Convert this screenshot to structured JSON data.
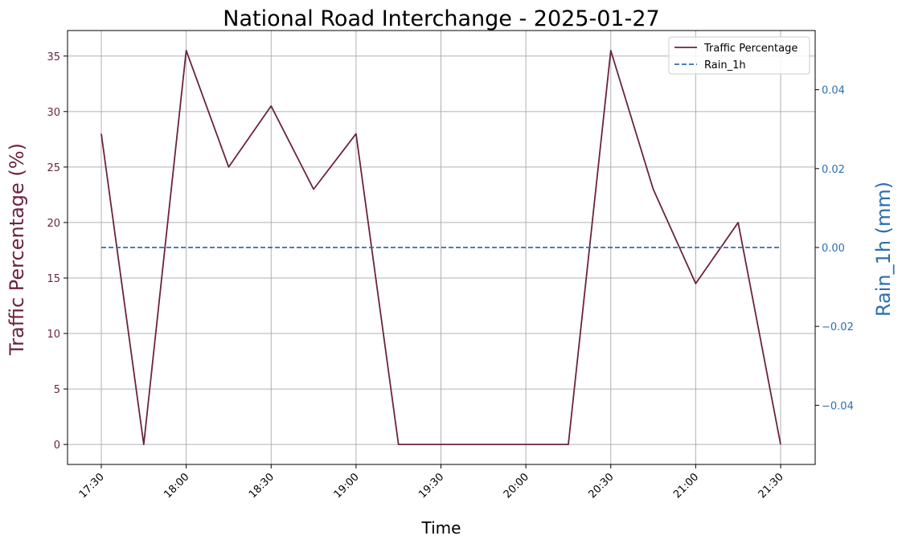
{
  "colors": {
    "traffic": "#6b2340",
    "rain": "#2e6fad",
    "grid": "#b0b0b0",
    "axis": "#000000"
  },
  "chart_data": {
    "type": "line",
    "title": "National Road Interchange - 2025-01-27",
    "xlabel": "Time",
    "ylabel_left": "Traffic Percentage (%)",
    "ylabel_right": "Rain_1h (mm)",
    "x_ticks": [
      "17:30",
      "18:00",
      "18:30",
      "19:00",
      "19:30",
      "20:00",
      "20:30",
      "21:00",
      "21:30"
    ],
    "x_range": [
      "17:30",
      "21:30"
    ],
    "x": [
      "17:30",
      "17:45",
      "18:00",
      "18:15",
      "18:30",
      "18:45",
      "19:00",
      "19:15",
      "19:30",
      "19:45",
      "20:00",
      "20:15",
      "20:30",
      "20:45",
      "21:00",
      "21:15",
      "21:30"
    ],
    "y_left_ticks": [
      0,
      5,
      10,
      15,
      20,
      25,
      30,
      35
    ],
    "y_left_range": [
      -1.8,
      37.3
    ],
    "y_right_ticks": [
      "0.04",
      "0.02",
      "0.00",
      "−0.02",
      "−0.04"
    ],
    "y_right_tick_values": [
      0.04,
      0.02,
      0.0,
      -0.02,
      -0.04
    ],
    "y_right_range": [
      -0.055,
      0.055
    ],
    "series": [
      {
        "name": "Traffic Percentage",
        "axis": "left",
        "style": "solid",
        "values": [
          28,
          0,
          35.5,
          25,
          30.5,
          23,
          28,
          0,
          0,
          0,
          0,
          0,
          35.5,
          23,
          14.5,
          20,
          0
        ]
      },
      {
        "name": "Rain_1h",
        "axis": "right",
        "style": "dashed",
        "values": [
          0,
          0,
          0,
          0,
          0,
          0,
          0,
          0,
          0,
          0,
          0,
          0,
          0,
          0,
          0,
          0,
          0
        ]
      }
    ],
    "grid": true,
    "legend_position": "top-right"
  }
}
